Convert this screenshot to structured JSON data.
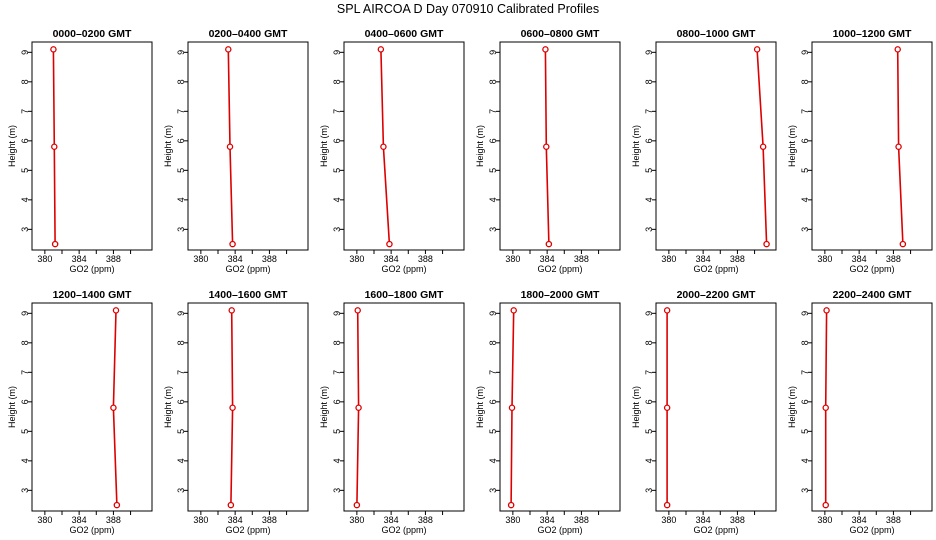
{
  "figure": {
    "title": "SPL AIRCOA D  Day 070910  Calibrated Profiles"
  },
  "chart_data": {
    "type": "line",
    "xlabel": "GO2 (ppm)",
    "ylabel": "Height (m)",
    "xticks": [
      "380",
      "384",
      "388"
    ],
    "yticks": [
      "3",
      "4",
      "5",
      "6",
      "7",
      "8",
      "9"
    ],
    "xlim": [
      378.5,
      392.5
    ],
    "ylim": [
      2.3,
      9.35
    ],
    "line_color": "#dd0000",
    "marker_style": "open-circle",
    "panels": [
      {
        "title": "0000–0200 GMT",
        "points": [
          {
            "x": 381.2,
            "y": 2.5
          },
          {
            "x": 381.1,
            "y": 5.8
          },
          {
            "x": 381.0,
            "y": 9.1
          }
        ]
      },
      {
        "title": "0200–0400 GMT",
        "points": [
          {
            "x": 383.7,
            "y": 2.5
          },
          {
            "x": 383.4,
            "y": 5.8
          },
          {
            "x": 383.2,
            "y": 9.1
          }
        ]
      },
      {
        "title": "0400–0600 GMT",
        "points": [
          {
            "x": 383.8,
            "y": 2.5
          },
          {
            "x": 383.1,
            "y": 5.8
          },
          {
            "x": 382.8,
            "y": 9.1
          }
        ]
      },
      {
        "title": "0600–0800 GMT",
        "points": [
          {
            "x": 384.2,
            "y": 2.5
          },
          {
            "x": 383.9,
            "y": 5.8
          },
          {
            "x": 383.8,
            "y": 9.1
          }
        ]
      },
      {
        "title": "0800–1000 GMT",
        "points": [
          {
            "x": 391.4,
            "y": 2.5
          },
          {
            "x": 391.0,
            "y": 5.8
          },
          {
            "x": 390.3,
            "y": 9.1
          }
        ]
      },
      {
        "title": "1000–1200 GMT",
        "points": [
          {
            "x": 389.1,
            "y": 2.5
          },
          {
            "x": 388.6,
            "y": 5.8
          },
          {
            "x": 388.5,
            "y": 9.1
          }
        ]
      },
      {
        "title": "1200–1400 GMT",
        "points": [
          {
            "x": 388.4,
            "y": 2.5
          },
          {
            "x": 388.0,
            "y": 5.8
          },
          {
            "x": 388.3,
            "y": 9.1
          }
        ]
      },
      {
        "title": "1400–1600 GMT",
        "points": [
          {
            "x": 383.5,
            "y": 2.5
          },
          {
            "x": 383.7,
            "y": 5.8
          },
          {
            "x": 383.6,
            "y": 9.1
          }
        ]
      },
      {
        "title": "1600–1800 GMT",
        "points": [
          {
            "x": 380.0,
            "y": 2.5
          },
          {
            "x": 380.2,
            "y": 5.8
          },
          {
            "x": 380.1,
            "y": 9.1
          }
        ]
      },
      {
        "title": "1800–2000 GMT",
        "points": [
          {
            "x": 379.8,
            "y": 2.5
          },
          {
            "x": 379.9,
            "y": 5.8
          },
          {
            "x": 380.1,
            "y": 9.1
          }
        ]
      },
      {
        "title": "2000–2200 GMT",
        "points": [
          {
            "x": 379.8,
            "y": 2.5
          },
          {
            "x": 379.8,
            "y": 5.8
          },
          {
            "x": 379.8,
            "y": 9.1
          }
        ]
      },
      {
        "title": "2200–2400 GMT",
        "points": [
          {
            "x": 380.1,
            "y": 2.5
          },
          {
            "x": 380.1,
            "y": 5.8
          },
          {
            "x": 380.2,
            "y": 9.1
          }
        ]
      }
    ]
  }
}
